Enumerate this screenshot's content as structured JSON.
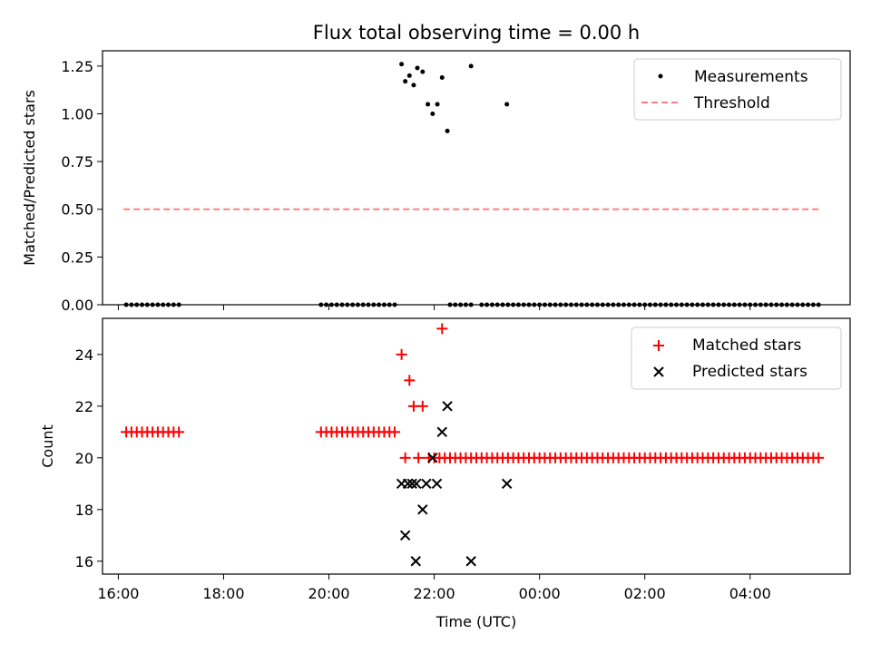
{
  "chart_data": [
    {
      "type": "scatter",
      "title": "Flux total observing time = 0.00 h",
      "xlabel": "",
      "ylabel": "Matched/Predicted stars",
      "xlim": [
        15.7,
        29.9
      ],
      "ylim": [
        0,
        1.33
      ],
      "yticks": [
        0.0,
        0.25,
        0.5,
        0.75,
        1.0,
        1.25
      ],
      "ytick_labels": [
        "0.00",
        "0.25",
        "0.50",
        "0.75",
        "1.00",
        "1.25"
      ],
      "xticks": [
        16,
        18,
        20,
        22,
        24,
        26,
        28
      ],
      "legend_position": "top-right",
      "series": [
        {
          "name": "Measurements",
          "kind": "points",
          "color": "#000000",
          "points": [
            [
              21.38,
              1.26
            ],
            [
              21.45,
              1.17
            ],
            [
              21.53,
              1.2
            ],
            [
              21.61,
              1.15
            ],
            [
              21.68,
              1.24
            ],
            [
              21.78,
              1.22
            ],
            [
              21.88,
              1.05
            ],
            [
              21.97,
              1.0
            ],
            [
              22.06,
              1.05
            ],
            [
              22.15,
              1.19
            ],
            [
              22.25,
              0.91
            ],
            [
              22.7,
              1.25
            ],
            [
              23.38,
              1.05
            ]
          ],
          "zero_runs": [
            {
              "start": 16.15,
              "end": 17.15,
              "step": 0.1
            },
            {
              "start": 19.85,
              "end": 21.3,
              "step": 0.1
            },
            {
              "start": 22.3,
              "end": 22.75,
              "step": 0.1
            },
            {
              "start": 22.9,
              "end": 23.5,
              "step": 0.1
            },
            {
              "start": 23.6,
              "end": 29.3,
              "step": 0.1
            }
          ]
        },
        {
          "name": "Threshold",
          "kind": "dashed-line",
          "color": "#ff7f7f",
          "x": [
            16.1,
            29.3
          ],
          "y": [
            0.5,
            0.5
          ]
        }
      ]
    },
    {
      "type": "scatter",
      "title": "",
      "xlabel": "Time (UTC)",
      "ylabel": "Count",
      "xlim": [
        15.7,
        29.9
      ],
      "ylim": [
        15.5,
        25.4
      ],
      "yticks": [
        16,
        18,
        20,
        22,
        24
      ],
      "ytick_labels": [
        "16",
        "18",
        "20",
        "22",
        "24"
      ],
      "xticks": [
        16,
        18,
        20,
        22,
        24,
        26,
        28
      ],
      "xtick_labels": [
        "16:00",
        "18:00",
        "20:00",
        "22:00",
        "00:00",
        "02:00",
        "04:00"
      ],
      "legend_position": "top-right",
      "series": [
        {
          "name": "Matched stars",
          "marker": "plus",
          "color": "#ff0000",
          "points": [
            [
              21.38,
              24
            ],
            [
              21.53,
              23
            ],
            [
              21.61,
              22
            ],
            [
              21.78,
              22
            ],
            [
              22.15,
              25
            ],
            [
              21.45,
              20
            ],
            [
              21.7,
              20
            ],
            [
              21.9,
              20
            ]
          ],
          "runs": [
            {
              "start": 16.15,
              "end": 17.15,
              "step": 0.1,
              "value": 21
            },
            {
              "start": 19.85,
              "end": 21.3,
              "step": 0.1,
              "value": 21
            },
            {
              "start": 22.0,
              "end": 29.3,
              "step": 0.1,
              "value": 20
            }
          ]
        },
        {
          "name": "Predicted stars",
          "marker": "x",
          "color": "#000000",
          "points": [
            [
              21.38,
              19
            ],
            [
              21.5,
              19
            ],
            [
              21.58,
              19
            ],
            [
              21.66,
              19
            ],
            [
              21.85,
              19
            ],
            [
              22.05,
              19
            ],
            [
              21.45,
              17
            ],
            [
              21.65,
              16
            ],
            [
              21.78,
              18
            ],
            [
              21.97,
              20
            ],
            [
              22.15,
              21
            ],
            [
              22.25,
              22
            ],
            [
              22.7,
              16
            ],
            [
              23.38,
              19
            ]
          ]
        }
      ]
    }
  ]
}
